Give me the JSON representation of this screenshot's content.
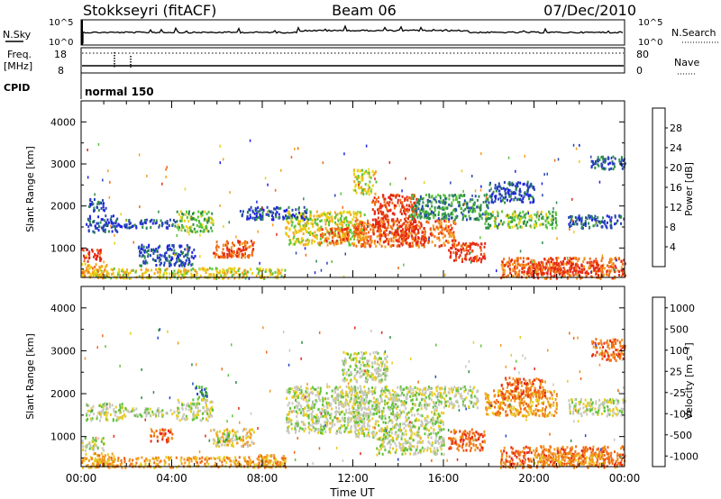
{
  "header": {
    "title": "Stokkseyri (fitACF)",
    "beam": "Beam 06",
    "date": "07/Dec/2010"
  },
  "strip_panels": {
    "nsky_label": "N.Sky",
    "nsky_ticks": [
      "10^5",
      "10^0"
    ],
    "nsearch_label": "N.Search",
    "nsearch_ticks": [
      "10^5",
      "10^0"
    ],
    "freq_label": "Freq.",
    "freq_unit": "[MHz]",
    "freq_ticks": [
      "18",
      "8"
    ],
    "nave_label": "Nave",
    "nave_ticks": [
      "80",
      "0"
    ],
    "cpid_label": "CPID",
    "cpid_text": "normal 150"
  },
  "chart_data": [
    {
      "type": "heatmap",
      "title": "",
      "xlabel": "Time UT",
      "ylabel": "Slant Range [km]",
      "xlim": [
        0,
        24
      ],
      "x_ticks": [
        "00:00",
        "04:00",
        "08:00",
        "12:00",
        "16:00",
        "20:00",
        "00:00"
      ],
      "ylim": [
        300,
        4500
      ],
      "y_ticks": [
        "1000",
        "2000",
        "3000",
        "4000"
      ],
      "colorbar_label": "Power [dB]",
      "colorbar_ticks": [
        "28",
        "24",
        "20",
        "16",
        "12",
        "8",
        "4"
      ],
      "colorbar_colors": [
        "#1e1ee6",
        "#2846b4",
        "#2e8c4a",
        "#58c43a",
        "#e8d010",
        "#f6a020",
        "#f06a14",
        "#e62814"
      ],
      "scatter_regions": [
        {
          "t0": 0.0,
          "t1": 0.9,
          "r0": 700,
          "r1": 1000,
          "level": 7
        },
        {
          "t0": 0.0,
          "t1": 1.2,
          "r0": 300,
          "r1": 650,
          "level": 5
        },
        {
          "t0": 0.2,
          "t1": 1.6,
          "r0": 1400,
          "r1": 1800,
          "level": 1
        },
        {
          "t0": 0.3,
          "t1": 1.1,
          "r0": 1900,
          "r1": 2200,
          "level": 1
        },
        {
          "t0": 1.6,
          "t1": 4.2,
          "r0": 1500,
          "r1": 1700,
          "level": 1
        },
        {
          "t0": 4.2,
          "t1": 5.8,
          "r0": 1400,
          "r1": 1900,
          "level": 3
        },
        {
          "t0": 2.5,
          "t1": 5.0,
          "r0": 600,
          "r1": 1100,
          "level": 1
        },
        {
          "t0": 5.8,
          "t1": 7.6,
          "r0": 800,
          "r1": 1200,
          "level": 6
        },
        {
          "t0": 6.2,
          "t1": 7.0,
          "r0": 800,
          "r1": 1050,
          "level": 7
        },
        {
          "t0": 0.5,
          "t1": 9.0,
          "r0": 300,
          "r1": 550,
          "level": 4
        },
        {
          "t0": 9.0,
          "t1": 12.5,
          "r0": 1100,
          "r1": 1900,
          "level": 4
        },
        {
          "t0": 10.5,
          "t1": 11.8,
          "r0": 1100,
          "r1": 1500,
          "level": 6
        },
        {
          "t0": 12.0,
          "t1": 16.5,
          "r0": 1050,
          "r1": 1700,
          "level": 6
        },
        {
          "t0": 12.8,
          "t1": 14.8,
          "r0": 1500,
          "r1": 2300,
          "level": 7
        },
        {
          "t0": 13.8,
          "t1": 15.2,
          "r0": 1100,
          "r1": 1500,
          "level": 7
        },
        {
          "t0": 12.0,
          "t1": 13.0,
          "r0": 2300,
          "r1": 2900,
          "level": 4
        },
        {
          "t0": 14.5,
          "t1": 18.0,
          "r0": 1700,
          "r1": 2300,
          "level": 2
        },
        {
          "t0": 16.2,
          "t1": 17.8,
          "r0": 700,
          "r1": 1150,
          "level": 7
        },
        {
          "t0": 17.8,
          "t1": 21.0,
          "r0": 1500,
          "r1": 1900,
          "level": 3
        },
        {
          "t0": 18.5,
          "t1": 24.0,
          "r0": 300,
          "r1": 800,
          "level": 6
        },
        {
          "t0": 19.5,
          "t1": 23.0,
          "r0": 400,
          "r1": 700,
          "level": 7
        },
        {
          "t0": 21.5,
          "t1": 24.0,
          "r0": 1500,
          "r1": 1800,
          "level": 1
        },
        {
          "t0": 22.5,
          "t1": 24.0,
          "r0": 2900,
          "r1": 3200,
          "level": 1
        },
        {
          "t0": 7.0,
          "t1": 10.0,
          "r0": 1700,
          "r1": 2000,
          "level": 1
        },
        {
          "t0": 18.0,
          "t1": 20.0,
          "r0": 2100,
          "r1": 2600,
          "level": 1
        }
      ]
    },
    {
      "type": "heatmap",
      "title": "",
      "xlabel": "Time UT",
      "ylabel": "Slant Range [km]",
      "xlim": [
        0,
        24
      ],
      "x_ticks": [
        "00:00",
        "04:00",
        "08:00",
        "12:00",
        "16:00",
        "20:00",
        "00:00"
      ],
      "ylim": [
        300,
        4500
      ],
      "y_ticks": [
        "1000",
        "2000",
        "3000",
        "4000"
      ],
      "colorbar_label": "Velocity [m s⁻¹]",
      "colorbar_ticks": [
        "1000",
        "500",
        "100",
        "25",
        "-25",
        "-100",
        "-500",
        "-1000"
      ],
      "colorbar_colors": [
        "#2244cc",
        "#2a8c48",
        "#62c23a",
        "#c8c8c0",
        "#e8cc20",
        "#f09820",
        "#f06a14",
        "#e62814"
      ],
      "scatter_regions": [
        {
          "t0": 0.0,
          "t1": 1.0,
          "r0": 700,
          "r1": 1000,
          "level": 3
        },
        {
          "t0": 0.0,
          "t1": 1.5,
          "r0": 300,
          "r1": 650,
          "level": 5
        },
        {
          "t0": 0.2,
          "t1": 1.8,
          "r0": 1400,
          "r1": 1800,
          "level": 3
        },
        {
          "t0": 1.6,
          "t1": 4.2,
          "r0": 1500,
          "r1": 1700,
          "level": 3
        },
        {
          "t0": 4.2,
          "t1": 5.8,
          "r0": 1400,
          "r1": 1900,
          "level": 3
        },
        {
          "t0": 5.0,
          "t1": 5.6,
          "r0": 1900,
          "r1": 2200,
          "level": 1
        },
        {
          "t0": 5.8,
          "t1": 7.6,
          "r0": 800,
          "r1": 1200,
          "level": 4
        },
        {
          "t0": 6.0,
          "t1": 7.0,
          "r0": 900,
          "r1": 1100,
          "level": 2
        },
        {
          "t0": 3.0,
          "t1": 4.0,
          "r0": 900,
          "r1": 1200,
          "level": 6
        },
        {
          "t0": 0.5,
          "t1": 9.0,
          "r0": 300,
          "r1": 550,
          "level": 5
        },
        {
          "t0": 7.8,
          "t1": 9.0,
          "r0": 300,
          "r1": 600,
          "level": 5
        },
        {
          "t0": 9.0,
          "t1": 12.5,
          "r0": 1100,
          "r1": 2200,
          "level": 3
        },
        {
          "t0": 12.0,
          "t1": 16.0,
          "r0": 1000,
          "r1": 2200,
          "level": 3
        },
        {
          "t0": 11.5,
          "t1": 13.5,
          "r0": 2300,
          "r1": 3000,
          "level": 3
        },
        {
          "t0": 16.2,
          "t1": 17.8,
          "r0": 700,
          "r1": 1200,
          "level": 6
        },
        {
          "t0": 16.0,
          "t1": 17.5,
          "r0": 1700,
          "r1": 2200,
          "level": 3
        },
        {
          "t0": 17.8,
          "t1": 21.0,
          "r0": 1500,
          "r1": 2100,
          "level": 5
        },
        {
          "t0": 18.5,
          "t1": 20.5,
          "r0": 1900,
          "r1": 2400,
          "level": 6
        },
        {
          "t0": 18.5,
          "t1": 24.0,
          "r0": 300,
          "r1": 800,
          "level": 6
        },
        {
          "t0": 20.0,
          "t1": 23.0,
          "r0": 350,
          "r1": 650,
          "level": 5
        },
        {
          "t0": 21.5,
          "t1": 24.0,
          "r0": 1500,
          "r1": 1900,
          "level": 3
        },
        {
          "t0": 22.5,
          "t1": 24.0,
          "r0": 2800,
          "r1": 3300,
          "level": 6
        },
        {
          "t0": 13.0,
          "t1": 16.0,
          "r0": 600,
          "r1": 1000,
          "level": 3
        }
      ]
    }
  ]
}
